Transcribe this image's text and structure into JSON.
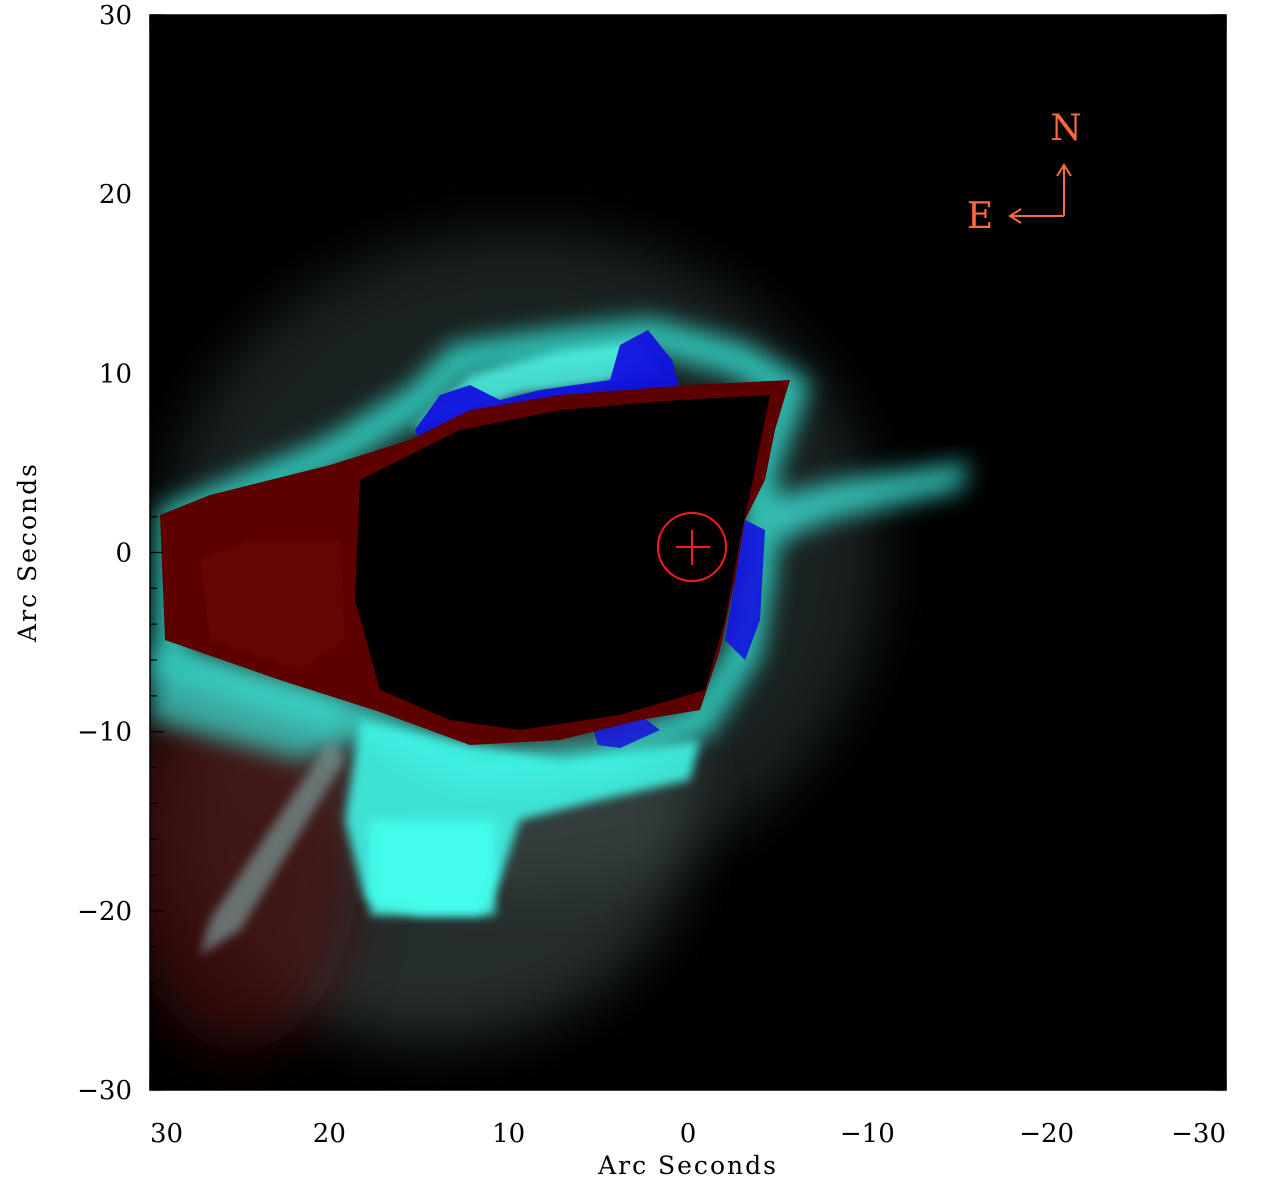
{
  "image": {
    "xlabel": "Arc Seconds",
    "ylabel": "Arc Seconds",
    "x_range": [
      30,
      -30
    ],
    "y_range": [
      -30,
      30
    ],
    "x_ticks": [
      30,
      20,
      10,
      0,
      -10,
      -20,
      -30
    ],
    "y_ticks": [
      30,
      20,
      10,
      0,
      -10,
      -20,
      -30
    ],
    "x_tick_labels": [
      "30",
      "20",
      "10",
      "0",
      "−10",
      "−20",
      "−30"
    ],
    "y_tick_labels": [
      "30",
      "20",
      "10",
      "0",
      "−10",
      "−20",
      "−30"
    ],
    "background_color": "#000000",
    "marker": {
      "type": "circle-with-crosshair",
      "x": 0,
      "y": 0,
      "color": "#ff1a1a"
    },
    "compass": {
      "north": "N",
      "east": "E",
      "color": "#ff6a3d"
    },
    "colors": {
      "cyan": "#3dfff0",
      "blue": "#1010e0",
      "red": "#6a0000"
    }
  }
}
